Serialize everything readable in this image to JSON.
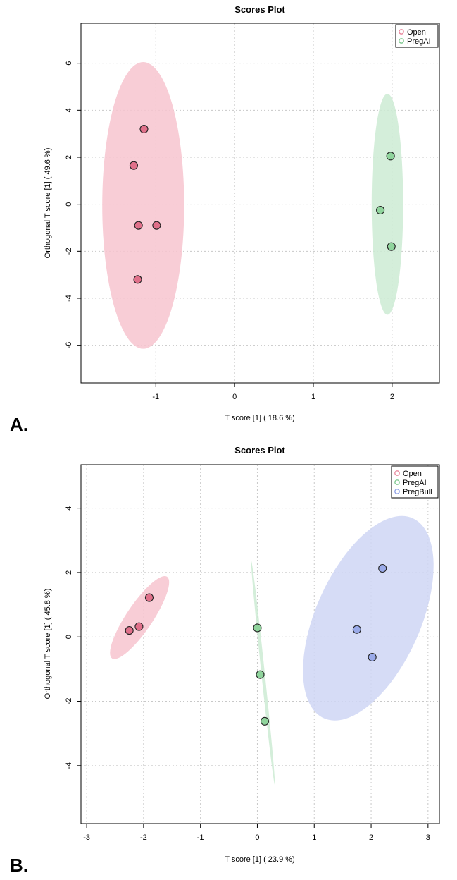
{
  "chart_data": [
    {
      "panel": "A.",
      "type": "scatter",
      "title": "Scores Plot",
      "xlabel": "T score [1]  ( 18.6 %)",
      "ylabel": "Orthogonal T score [1]  ( 49.6 %)",
      "xlim": [
        -1.95,
        2.6
      ],
      "ylim": [
        -7.6,
        7.7
      ],
      "xticks": [
        -1,
        0,
        1,
        2
      ],
      "yticks": [
        -6,
        -4,
        -2,
        0,
        2,
        4,
        6
      ],
      "grid": true,
      "legend_position": "top-right",
      "series": [
        {
          "name": "Open",
          "color": "#e8879c",
          "marker_fill": "#e0708a",
          "ellipse_fill": "#f7c4cf",
          "points": [
            [
              -1.15,
              3.2
            ],
            [
              -1.28,
              1.65
            ],
            [
              -1.22,
              -0.9
            ],
            [
              -0.99,
              -0.9
            ],
            [
              -1.23,
              -3.2
            ]
          ],
          "ellipse": {
            "cx": -1.16,
            "cy": -0.05,
            "rx": 0.52,
            "ry": 6.1,
            "angle": 0
          }
        },
        {
          "name": "PregAI",
          "color": "#7fc98f",
          "marker_fill": "#8fd49c",
          "ellipse_fill": "#cdebd3",
          "points": [
            [
              1.98,
              2.05
            ],
            [
              1.85,
              -0.25
            ],
            [
              1.99,
              -1.8
            ]
          ],
          "ellipse": {
            "cx": 1.94,
            "cy": 0.0,
            "rx": 0.2,
            "ry": 4.7,
            "angle": 0
          }
        }
      ]
    },
    {
      "panel": "B.",
      "type": "scatter",
      "title": "Scores Plot",
      "xlabel": "T score [1]  ( 23.9 %)",
      "ylabel": "Orthogonal T score [1]  ( 45.8 %)",
      "xlim": [
        -3.1,
        3.2
      ],
      "ylim": [
        -5.8,
        5.35
      ],
      "xticks": [
        -3,
        -2,
        -1,
        0,
        1,
        2,
        3
      ],
      "yticks": [
        -4,
        -2,
        0,
        2,
        4
      ],
      "grid": true,
      "legend_position": "top-right",
      "series": [
        {
          "name": "Open",
          "color": "#e8879c",
          "marker_fill": "#e0708a",
          "ellipse_fill": "#f7c4cf",
          "points": [
            [
              -2.25,
              0.2
            ],
            [
              -2.08,
              0.32
            ],
            [
              -1.9,
              1.22
            ]
          ],
          "ellipse": {
            "cx": -2.07,
            "cy": 0.6,
            "rx": 0.23,
            "ry": 1.53,
            "angle": 34
          }
        },
        {
          "name": "PregAI",
          "color": "#7fc98f",
          "marker_fill": "#8fd49c",
          "ellipse_fill": "#cdebd3",
          "points": [
            [
              0.0,
              0.28
            ],
            [
              0.05,
              -1.17
            ],
            [
              0.13,
              -2.62
            ]
          ],
          "ellipse": {
            "cx": 0.1,
            "cy": -1.12,
            "rx": 0.03,
            "ry": 3.5,
            "angle": -6
          }
        },
        {
          "name": "PregBull",
          "color": "#8ea0e6",
          "marker_fill": "#9aaae9",
          "ellipse_fill": "#cfd6f5",
          "points": [
            [
              2.2,
              2.13
            ],
            [
              1.75,
              0.23
            ],
            [
              2.02,
              -0.63
            ]
          ],
          "ellipse": {
            "cx": 1.95,
            "cy": 0.58,
            "rx": 0.92,
            "ry": 3.4,
            "angle": 24
          }
        }
      ]
    }
  ]
}
